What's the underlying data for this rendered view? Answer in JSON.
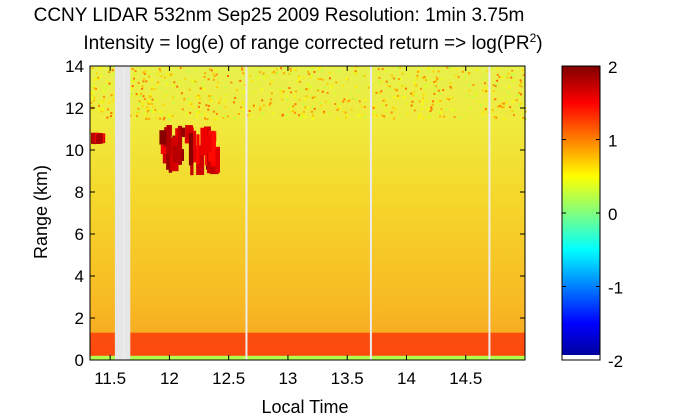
{
  "chart_data": {
    "type": "heatmap",
    "title_line1": "CCNY LIDAR 532nm Sep25 2009 Resolution: 1min 3.75m",
    "title_line2_prefix": "Intensity = log(e) of range corrected return => log(PR",
    "title_line2_sup": "2",
    "title_line2_suffix": ")",
    "xlabel": "Local Time",
    "ylabel": "Range (km)",
    "xlim": [
      11.33,
      15.0
    ],
    "ylim": [
      0,
      14
    ],
    "xticks": [
      11.5,
      12,
      12.5,
      13,
      13.5,
      14,
      14.5
    ],
    "xtick_labels": [
      "11.5",
      "12",
      "12.5",
      "13",
      "13.5",
      "14",
      "14.5"
    ],
    "yticks": [
      0,
      2,
      4,
      6,
      8,
      10,
      12,
      14
    ],
    "ytick_labels": [
      "0",
      "2",
      "4",
      "6",
      "8",
      "10",
      "12",
      "14"
    ],
    "colorbar": {
      "clim": [
        -2,
        2
      ],
      "ticks": [
        -2,
        -1,
        0,
        1,
        2
      ],
      "tick_labels": [
        "-2",
        "-1",
        "0",
        "1",
        "2"
      ],
      "colormap": "jet"
    },
    "data_gaps_time": [
      11.62,
      12.65,
      13.7,
      14.7
    ],
    "data_gap_band": [
      11.54,
      11.67
    ],
    "cloud_layers": [
      {
        "t_start": 11.33,
        "t_end": 11.46,
        "z_bottom": 10.3,
        "z_top": 10.8,
        "intensity": 2.0
      },
      {
        "t_start": 11.9,
        "t_end": 12.45,
        "z_bottom": 8.8,
        "z_top": 11.2,
        "intensity": 2.0
      }
    ],
    "boundary_layer": {
      "z_top_km": 1.3,
      "intensity": 1.5
    },
    "near_surface_band": {
      "z_top_km": 0.2,
      "intensity": 0.2
    }
  }
}
